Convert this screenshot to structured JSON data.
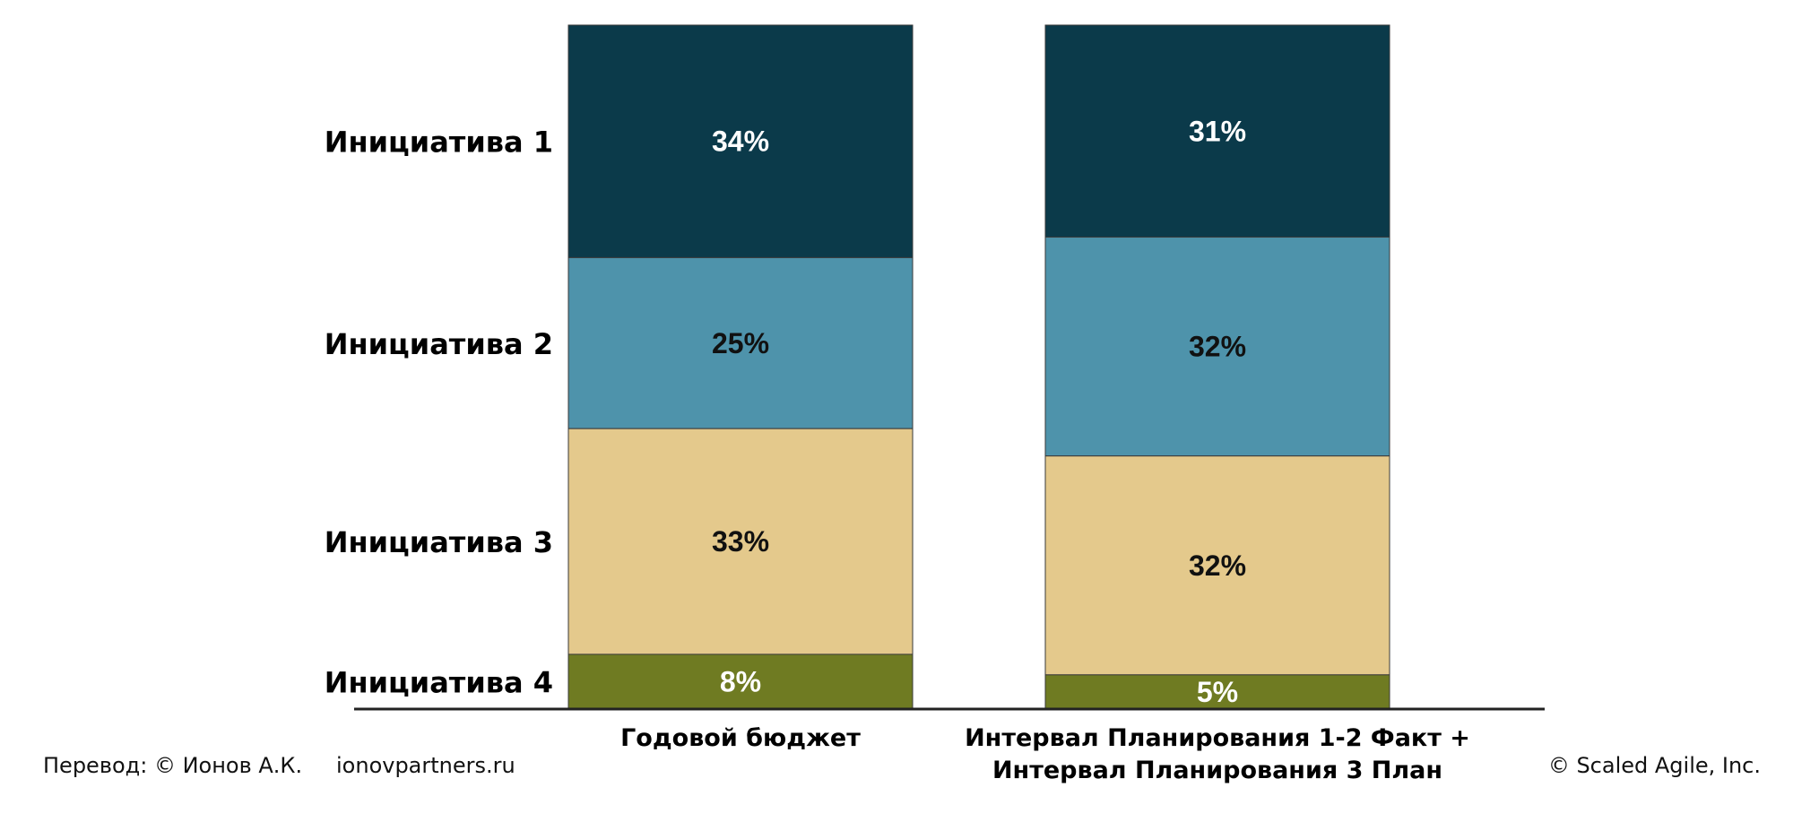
{
  "chart_data": {
    "type": "bar",
    "stacked": true,
    "categories": [
      "Годовой бюджет",
      "Интервал Планирования 1-2 Факт +\nИнтервал Планирования 3 План"
    ],
    "series": [
      {
        "name": "Инициатива 1",
        "values": [
          34,
          31
        ],
        "labels": [
          "34%",
          "31%"
        ],
        "color": "#0b3a4a",
        "label_color": "#ffffff"
      },
      {
        "name": "Инициатива 2",
        "values": [
          25,
          32
        ],
        "labels": [
          "25%",
          "32%"
        ],
        "color": "#4e93ab",
        "label_color": "#111111"
      },
      {
        "name": "Инициатива 3",
        "values": [
          33,
          32
        ],
        "labels": [
          "33%",
          "32%"
        ],
        "color": "#e4c98c",
        "label_color": "#111111"
      },
      {
        "name": "Инициатива 4",
        "values": [
          8,
          5
        ],
        "labels": [
          "8%",
          "5%"
        ],
        "color": "#6f7b22",
        "label_color": "#ffffff"
      }
    ],
    "title": "",
    "xlabel": "",
    "ylabel": "",
    "ylim": [
      0,
      100
    ],
    "grid": false,
    "legend": "left"
  },
  "footer": {
    "translation": "Перевод: © Ионов А.К.",
    "website": "ionovpartners.ru",
    "copyright": "© Scaled Agile,  Inc."
  }
}
